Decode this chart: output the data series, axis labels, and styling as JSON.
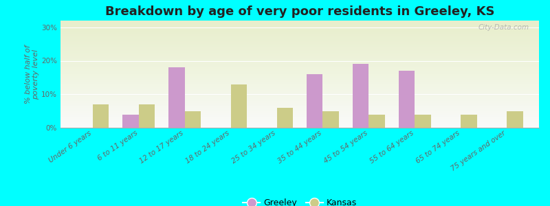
{
  "title": "Breakdown by age of very poor residents in Greeley, KS",
  "ylabel": "% below half of\npoverty level",
  "categories": [
    "Under 6 years",
    "6 to 11 years",
    "12 to 17 years",
    "18 to 24 years",
    "25 to 34 years",
    "35 to 44 years",
    "45 to 54 years",
    "55 to 64 years",
    "65 to 74 years",
    "75 years and over"
  ],
  "greeley_values": [
    0,
    4.0,
    18.0,
    0,
    0,
    16.0,
    19.0,
    17.0,
    0,
    0
  ],
  "kansas_values": [
    7.0,
    7.0,
    5.0,
    13.0,
    6.0,
    5.0,
    4.0,
    4.0,
    4.0,
    5.0
  ],
  "greeley_color": "#cc99cc",
  "kansas_color": "#cccc88",
  "background_color": "#00ffff",
  "ylim": [
    0,
    32
  ],
  "yticks": [
    0,
    10,
    20,
    30
  ],
  "bar_width": 0.35,
  "title_fontsize": 13,
  "axis_label_fontsize": 8,
  "tick_fontsize": 7.5,
  "legend_fontsize": 9,
  "watermark": "City-Data.com"
}
